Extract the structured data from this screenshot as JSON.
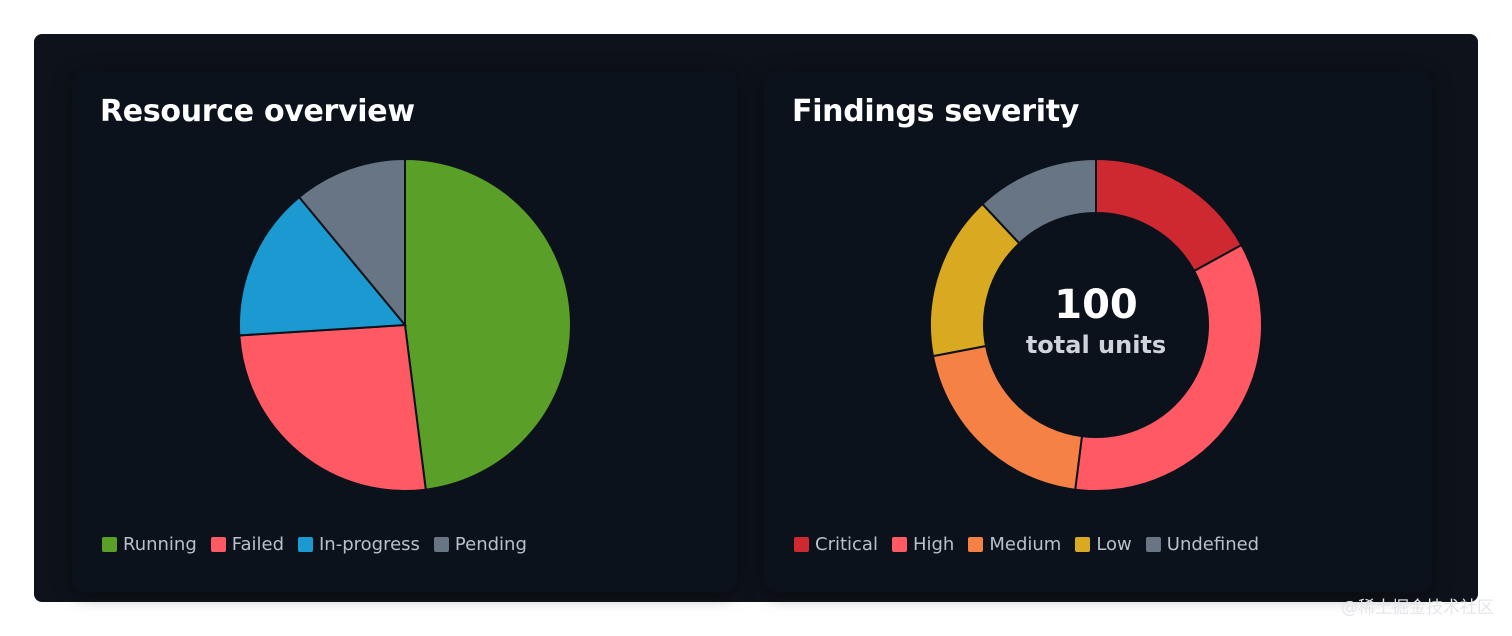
{
  "chart_data": [
    {
      "type": "pie",
      "title": "Resource overview",
      "categories": [
        "Running",
        "Failed",
        "In-progress",
        "Pending"
      ],
      "values": [
        48,
        26,
        15,
        11
      ],
      "colors": [
        "#5aa028",
        "#ff5964",
        "#1a9ad0",
        "#677584"
      ],
      "legend": "bottom-left"
    },
    {
      "type": "pie",
      "subtype": "donut",
      "title": "Findings severity",
      "categories": [
        "Critical",
        "High",
        "Medium",
        "Low",
        "Undefined"
      ],
      "values": [
        17,
        35,
        20,
        16,
        12
      ],
      "colors": [
        "#ce2830",
        "#ff5964",
        "#f58244",
        "#d9a921",
        "#677584"
      ],
      "center_value": "100",
      "center_label": "total units",
      "legend": "bottom-left"
    }
  ],
  "watermark": "@稀土掘金技术社区"
}
